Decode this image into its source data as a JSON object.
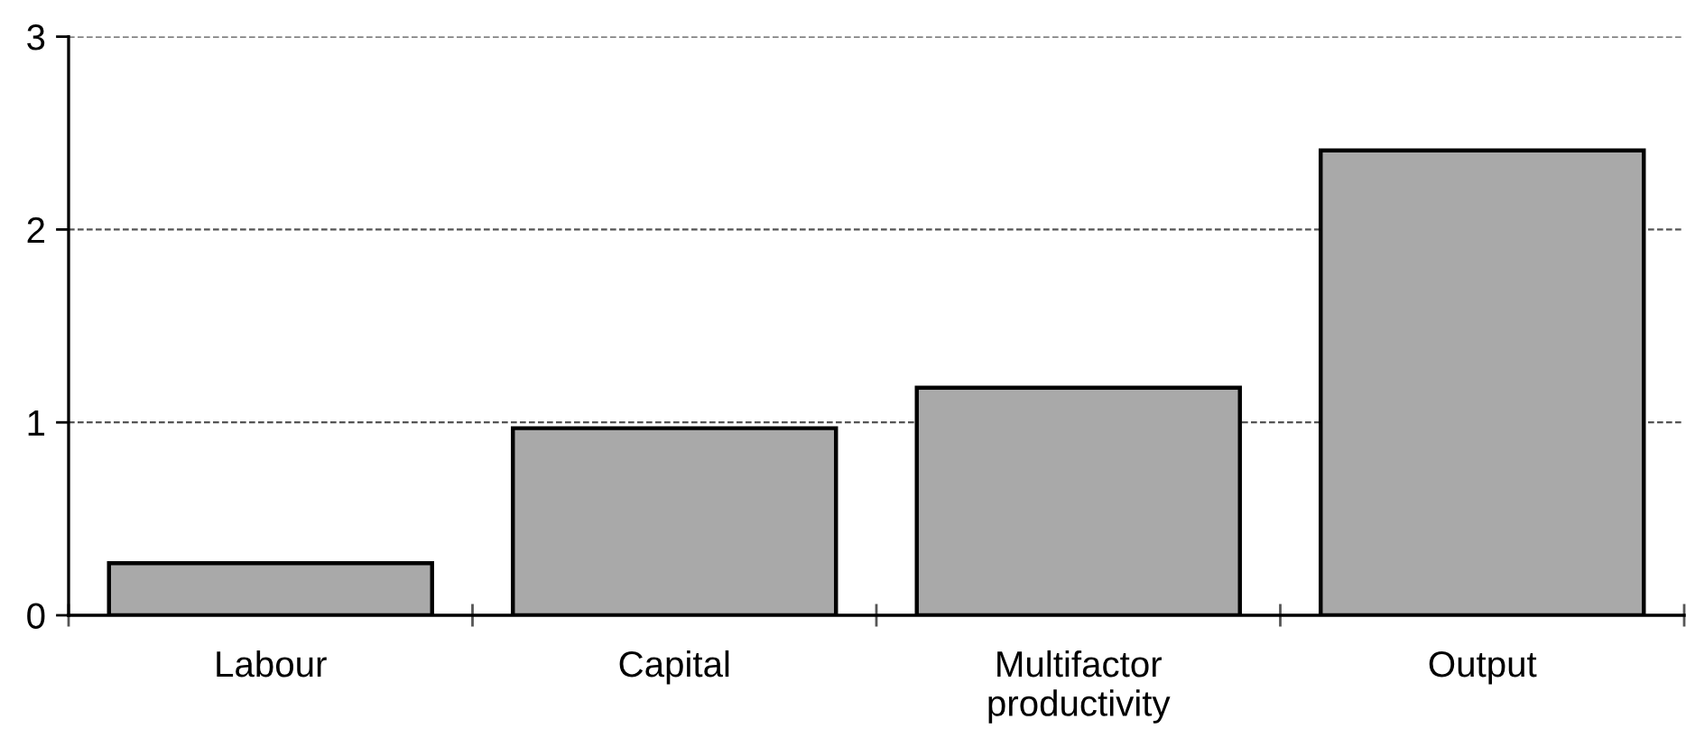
{
  "chart_data": {
    "type": "bar",
    "categories": [
      "Labour",
      "Capital",
      "Multifactor\nproductivity",
      "Output"
    ],
    "values": [
      0.27,
      0.97,
      1.18,
      2.41
    ],
    "color": "#a9a9a9",
    "ylim": [
      0,
      3
    ],
    "yticks": [
      0,
      1,
      2,
      3
    ],
    "grid": "y"
  }
}
